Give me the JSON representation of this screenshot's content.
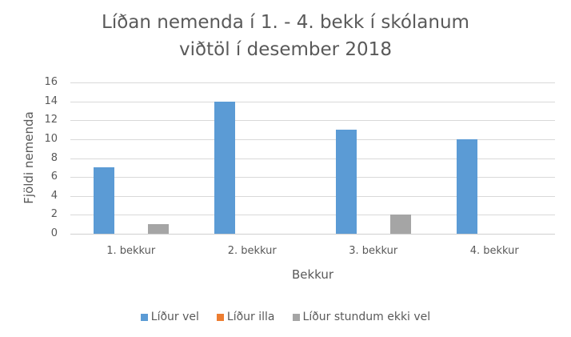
{
  "chart_data": {
    "type": "bar",
    "title": "Líðan nemenda í 1. - 4. bekk í skólanum",
    "subtitle": "viðtöl í desember 2018",
    "categories": [
      "1. bekkur",
      "2. bekkur",
      "3. bekkur",
      "4. bekkur"
    ],
    "series": [
      {
        "name": "Líður vel",
        "color": "#5b9bd5",
        "values": [
          7,
          14,
          11,
          10
        ]
      },
      {
        "name": "Líður illa",
        "color": "#ed7d31",
        "values": [
          0,
          0,
          0,
          0
        ]
      },
      {
        "name": "Líður stundum ekki vel",
        "color": "#a5a5a5",
        "values": [
          1,
          0,
          2,
          0
        ]
      }
    ],
    "xlabel": "Bekkur",
    "ylabel": "Fjöldi nemenda",
    "ylim": [
      0,
      16
    ],
    "yticks": [
      "0",
      "2",
      "4",
      "6",
      "8",
      "10",
      "12",
      "14",
      "16"
    ],
    "grid": true,
    "legend_position": "bottom"
  }
}
